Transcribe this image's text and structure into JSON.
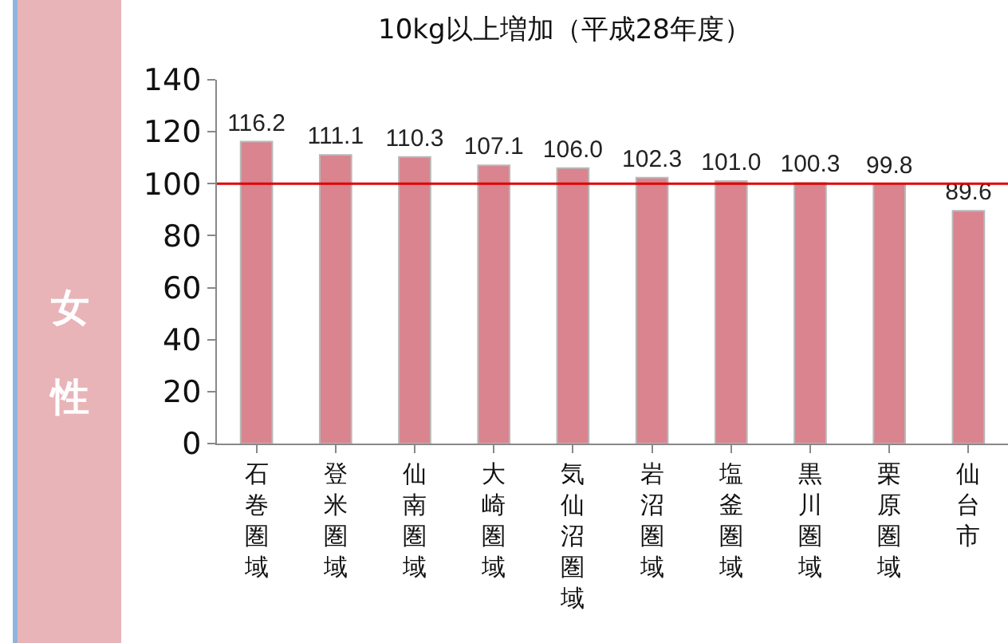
{
  "chart_data": {
    "type": "bar",
    "title": "10kg以上増加（平成28年度）",
    "ylabel": "女性",
    "categories": [
      "石巻圏域",
      "登米圏域",
      "仙南圏域",
      "大崎圏域",
      "気仙沼圏域",
      "岩沼圏域",
      "塩釜圏域",
      "黒川圏域",
      "栗原圏域",
      "仙台市"
    ],
    "values": [
      116.2,
      111.1,
      110.3,
      107.1,
      106.0,
      102.3,
      101.0,
      100.3,
      99.8,
      89.6
    ],
    "color": "#d9848e",
    "ylim": [
      0,
      140
    ],
    "yticks": [
      0,
      20,
      40,
      60,
      80,
      100,
      120,
      140
    ],
    "grid": false,
    "value_labels": [
      "116.2",
      "111.1",
      "110.3",
      "107.1",
      "106.0",
      "102.3",
      "101.0",
      "100.3",
      "99.8",
      "89.6"
    ],
    "ref_lines": [
      {
        "axis": "y",
        "value": 100,
        "color": "#e00000"
      }
    ]
  }
}
